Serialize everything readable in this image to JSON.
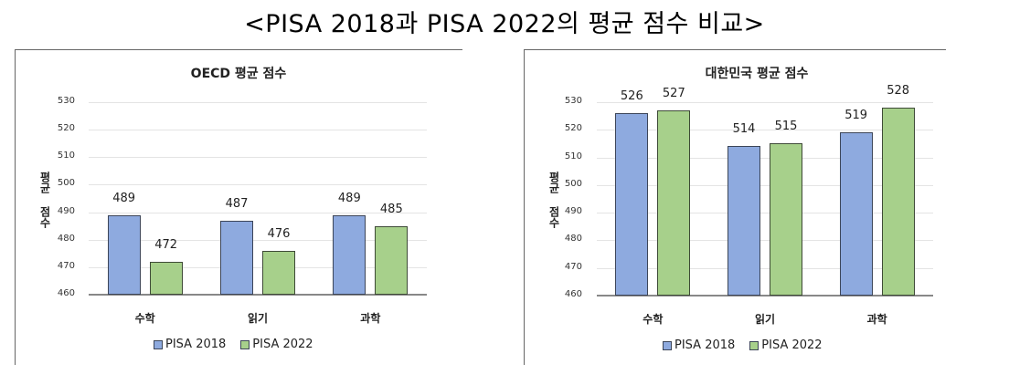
{
  "page_title": "<PISA 2018과 PISA 2022의 평균 점수 비교>",
  "colors": {
    "pisa2018": "#8eaadf",
    "pisa2022": "#a7d08b",
    "bar_border": "#3c4558"
  },
  "chart_data": [
    {
      "type": "bar",
      "title": "OECD 평균 점수",
      "xlabel": "",
      "ylabel": "평균 점수",
      "categories": [
        "수학",
        "읽기",
        "과학"
      ],
      "series": [
        {
          "name": "PISA 2018",
          "values": [
            489,
            487,
            489
          ]
        },
        {
          "name": "PISA 2022",
          "values": [
            472,
            476,
            485
          ]
        }
      ],
      "ylim": [
        460,
        530
      ],
      "yticks": [
        530,
        520,
        510,
        500,
        490,
        480,
        470,
        460
      ],
      "grid": true,
      "legend_position": "bottom"
    },
    {
      "type": "bar",
      "title": "대한민국 평균 점수",
      "xlabel": "",
      "ylabel": "평균 점수",
      "categories": [
        "수학",
        "읽기",
        "과학"
      ],
      "series": [
        {
          "name": "PISA 2018",
          "values": [
            526,
            514,
            519
          ]
        },
        {
          "name": "PISA 2022",
          "values": [
            527,
            515,
            528
          ]
        }
      ],
      "ylim": [
        460,
        530
      ],
      "yticks": [
        530,
        520,
        510,
        500,
        490,
        480,
        470,
        460
      ],
      "grid": true,
      "legend_position": "bottom"
    }
  ]
}
